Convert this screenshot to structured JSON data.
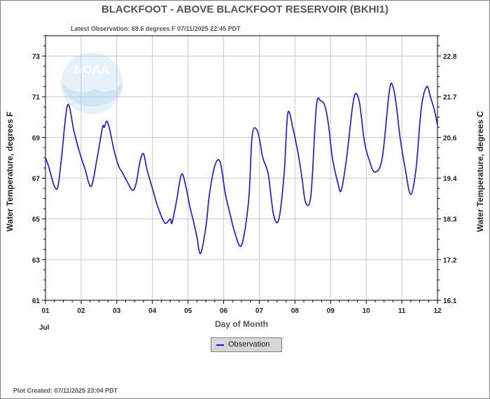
{
  "title": "BLACKFOOT - ABOVE BLACKFOOT RESERVOIR  (BKHI1)",
  "subtitle": "Latest Observation: 69.6 degrees F 07/11/2025 22:45 PDT",
  "footer": "Plot Created: 07/11/2025 23:04 PDT",
  "logo_text": "NOAA",
  "legend": {
    "label": "Observation"
  },
  "colors": {
    "series": "#1010ff",
    "grid": "#c8c8c8",
    "axis": "#000000",
    "logo": "#e6f2fb"
  },
  "chart_data": {
    "type": "line",
    "xlabel": "Day of Month",
    "x_month_label": "Jul",
    "ylabel": "Water Temperature, degrees F",
    "y2label": "Water Temperature, degrees C",
    "xlim": [
      1,
      12
    ],
    "ylim": [
      61,
      74
    ],
    "x_ticks": [
      "01",
      "02",
      "03",
      "04",
      "05",
      "06",
      "07",
      "08",
      "09",
      "10",
      "11",
      "12"
    ],
    "y_ticks": [
      "61",
      "63",
      "65",
      "67",
      "69",
      "71",
      "73"
    ],
    "y2_ticks": [
      "16.1",
      "17.2",
      "18.3",
      "19.4",
      "20.6",
      "21.7",
      "22.8"
    ],
    "grid": true,
    "legend_position": "bottom-center",
    "series": [
      {
        "name": "Observation",
        "x": [
          1.0,
          1.1,
          1.25,
          1.35,
          1.45,
          1.62,
          1.8,
          1.95,
          2.1,
          2.28,
          2.45,
          2.6,
          2.65,
          2.72,
          2.8,
          2.92,
          3.05,
          3.15,
          3.3,
          3.45,
          3.55,
          3.65,
          3.75,
          3.85,
          4.0,
          4.15,
          4.35,
          4.5,
          4.55,
          4.68,
          4.82,
          4.95,
          5.05,
          5.15,
          5.25,
          5.35,
          5.5,
          5.6,
          5.75,
          5.9,
          6.05,
          6.2,
          6.3,
          6.5,
          6.7,
          6.8,
          6.95,
          7.1,
          7.25,
          7.4,
          7.55,
          7.7,
          7.8,
          7.95,
          8.1,
          8.2,
          8.3,
          8.45,
          8.6,
          8.72,
          8.85,
          8.95,
          9.05,
          9.2,
          9.3,
          9.45,
          9.65,
          9.8,
          9.95,
          10.1,
          10.25,
          10.45,
          10.65,
          10.75,
          10.85,
          10.95,
          11.1,
          11.25,
          11.4,
          11.55,
          11.7,
          11.8,
          11.92,
          12.0
        ],
        "y": [
          68.0,
          67.5,
          66.6,
          66.6,
          68.0,
          70.6,
          69.3,
          68.3,
          67.5,
          66.6,
          68.0,
          69.5,
          69.5,
          69.8,
          69.4,
          68.4,
          67.6,
          67.3,
          66.8,
          66.4,
          66.8,
          67.8,
          68.2,
          67.4,
          66.5,
          65.6,
          64.8,
          65.0,
          64.8,
          65.9,
          67.2,
          66.5,
          65.6,
          64.9,
          64.1,
          63.3,
          64.6,
          66.2,
          67.6,
          67.8,
          66.2,
          65.1,
          64.4,
          63.7,
          65.9,
          69.1,
          69.3,
          68.0,
          67.2,
          65.2,
          65.0,
          67.3,
          70.2,
          69.4,
          68.1,
          67.0,
          65.8,
          66.2,
          70.5,
          70.8,
          70.5,
          69.5,
          68.0,
          66.8,
          66.4,
          68.0,
          70.9,
          70.8,
          68.8,
          67.8,
          67.3,
          68.0,
          71.3,
          71.5,
          70.5,
          69.0,
          67.4,
          66.2,
          67.5,
          70.5,
          71.5,
          71.0,
          70.3,
          69.6
        ]
      }
    ]
  }
}
